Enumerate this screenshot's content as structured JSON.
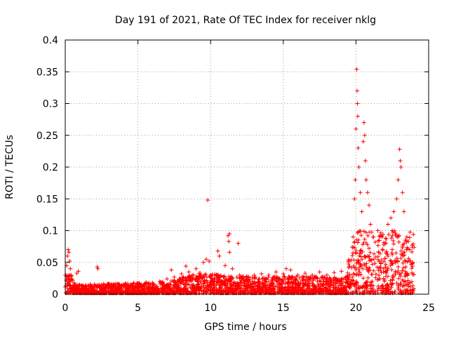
{
  "chart_data": {
    "type": "scatter",
    "title": "Day 191 of 2021, Rate Of TEC Index for receiver nklg",
    "xlabel": "GPS time / hours",
    "ylabel": "ROTI / TECUs",
    "xlim": [
      0,
      25
    ],
    "ylim": [
      0,
      0.4
    ],
    "x_ticks": [
      0,
      5,
      10,
      15,
      20,
      25
    ],
    "y_ticks": [
      0,
      0.05,
      0.1,
      0.15,
      0.2,
      0.25,
      0.3,
      0.35,
      0.4
    ],
    "x_tick_labels": [
      "0",
      "5",
      "10",
      "15",
      "20",
      "25"
    ],
    "y_tick_labels": [
      "0",
      "0.05",
      "0.1",
      "0.15",
      "0.2",
      "0.25",
      "0.3",
      "0.35",
      "0.4"
    ],
    "grid": true,
    "marker": "+",
    "color": "#ff0000",
    "series": [
      {
        "name": "ROTI",
        "points": [
          [
            0.05,
            0.03
          ],
          [
            0.1,
            0.045
          ],
          [
            0.15,
            0.06
          ],
          [
            0.2,
            0.07
          ],
          [
            0.25,
            0.066
          ],
          [
            0.3,
            0.052
          ],
          [
            0.35,
            0.04
          ],
          [
            0.4,
            0.028
          ],
          [
            0.5,
            0.022
          ],
          [
            0.6,
            0.018
          ],
          [
            0.8,
            0.033
          ],
          [
            0.9,
            0.036
          ],
          [
            1.0,
            0.015
          ],
          [
            1.2,
            0.01
          ],
          [
            1.5,
            0.008
          ],
          [
            1.8,
            0.012
          ],
          [
            2.2,
            0.043
          ],
          [
            2.25,
            0.04
          ],
          [
            2.5,
            0.015
          ],
          [
            3.0,
            0.01
          ],
          [
            3.5,
            0.012
          ],
          [
            4.0,
            0.014
          ],
          [
            4.5,
            0.013
          ],
          [
            5.0,
            0.016
          ],
          [
            5.5,
            0.017
          ],
          [
            6.0,
            0.018
          ],
          [
            6.5,
            0.02
          ],
          [
            7.0,
            0.024
          ],
          [
            7.3,
            0.038
          ],
          [
            7.5,
            0.027
          ],
          [
            8.0,
            0.032
          ],
          [
            8.3,
            0.044
          ],
          [
            8.5,
            0.035
          ],
          [
            9.0,
            0.04
          ],
          [
            9.5,
            0.05
          ],
          [
            9.7,
            0.055
          ],
          [
            9.9,
            0.052
          ],
          [
            9.8,
            0.148
          ],
          [
            10.0,
            0.03
          ],
          [
            10.5,
            0.068
          ],
          [
            10.6,
            0.06
          ],
          [
            11.0,
            0.045
          ],
          [
            11.2,
            0.092
          ],
          [
            11.3,
            0.095
          ],
          [
            11.25,
            0.083
          ],
          [
            11.3,
            0.066
          ],
          [
            11.5,
            0.04
          ],
          [
            11.9,
            0.08
          ],
          [
            12.0,
            0.03
          ],
          [
            12.5,
            0.028
          ],
          [
            13.0,
            0.03
          ],
          [
            13.5,
            0.032
          ],
          [
            14.0,
            0.03
          ],
          [
            14.5,
            0.035
          ],
          [
            15.0,
            0.032
          ],
          [
            15.2,
            0.04
          ],
          [
            15.5,
            0.038
          ],
          [
            16.0,
            0.03
          ],
          [
            16.5,
            0.033
          ],
          [
            17.0,
            0.03
          ],
          [
            17.5,
            0.035
          ],
          [
            18.0,
            0.03
          ],
          [
            18.5,
            0.034
          ],
          [
            19.0,
            0.036
          ],
          [
            19.5,
            0.042
          ],
          [
            19.8,
            0.09
          ],
          [
            19.9,
            0.15
          ],
          [
            19.95,
            0.18
          ],
          [
            20.0,
            0.26
          ],
          [
            20.05,
            0.354
          ],
          [
            20.08,
            0.32
          ],
          [
            20.1,
            0.3
          ],
          [
            20.12,
            0.28
          ],
          [
            20.15,
            0.23
          ],
          [
            20.2,
            0.2
          ],
          [
            20.3,
            0.16
          ],
          [
            20.4,
            0.13
          ],
          [
            20.5,
            0.24
          ],
          [
            20.55,
            0.27
          ],
          [
            20.6,
            0.25
          ],
          [
            20.65,
            0.21
          ],
          [
            20.7,
            0.18
          ],
          [
            20.8,
            0.16
          ],
          [
            20.9,
            0.14
          ],
          [
            21.0,
            0.11
          ],
          [
            21.2,
            0.09
          ],
          [
            21.5,
            0.1
          ],
          [
            21.8,
            0.09
          ],
          [
            22.0,
            0.08
          ],
          [
            22.2,
            0.11
          ],
          [
            22.4,
            0.12
          ],
          [
            22.6,
            0.13
          ],
          [
            22.8,
            0.15
          ],
          [
            22.9,
            0.18
          ],
          [
            23.0,
            0.228
          ],
          [
            23.05,
            0.21
          ],
          [
            23.1,
            0.2
          ],
          [
            23.2,
            0.16
          ],
          [
            23.3,
            0.13
          ],
          [
            23.5,
            0.09
          ],
          [
            23.7,
            0.07
          ],
          [
            23.9,
            0.05
          ]
        ]
      }
    ]
  }
}
